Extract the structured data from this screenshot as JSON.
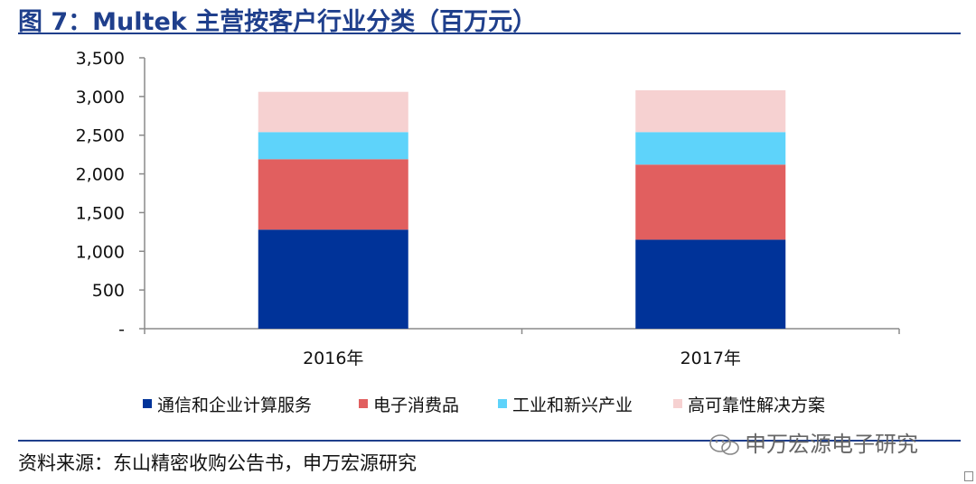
{
  "figure": {
    "title": "图 7：Multek 主营按客户行业分类（百万元）",
    "source": "资料来源：东山精密收购公告书，申万宏源研究",
    "watermark": "申万宏源电子研究"
  },
  "chart_data": {
    "type": "bar",
    "stacked": true,
    "categories": [
      "2016年",
      "2017年"
    ],
    "series": [
      {
        "name": "通信和企业计算服务",
        "color": "#003399",
        "values": [
          1280,
          1150
        ]
      },
      {
        "name": "电子消费品",
        "color": "#e15f5f",
        "values": [
          910,
          970
        ]
      },
      {
        "name": "工业和新兴产业",
        "color": "#5ed3fa",
        "values": [
          350,
          420
        ]
      },
      {
        "name": "高可靠性解决方案",
        "color": "#f6d1d1",
        "values": [
          520,
          540
        ]
      }
    ],
    "ylim": [
      0,
      3500
    ],
    "yticks": [
      0,
      500,
      1000,
      1500,
      2000,
      2500,
      3000,
      3500
    ],
    "ytick_labels": [
      "-",
      "500",
      "1,000",
      "1,500",
      "2,000",
      "2,500",
      "3,000",
      "3,500"
    ],
    "grid": false,
    "legend_position": "bottom"
  }
}
